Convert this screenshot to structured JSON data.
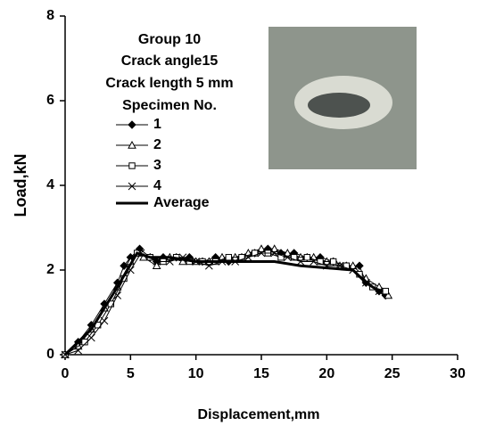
{
  "chart_data": {
    "type": "line",
    "legend_title": [
      "Group 10",
      "Crack angle15",
      "Crack length  5 mm",
      "Specimen No."
    ],
    "xlabel": "Displacement,mm",
    "ylabel": "Load,kN",
    "xlim": [
      0,
      30
    ],
    "xticks": [
      0,
      5,
      10,
      15,
      20,
      25,
      30
    ],
    "ylim": [
      0,
      8
    ],
    "yticks": [
      0,
      2,
      4,
      6,
      8
    ],
    "series": [
      {
        "name": "1",
        "color": "#000000",
        "marker": "diamond",
        "width": 1,
        "x": [
          0,
          1,
          2,
          3,
          4,
          4.5,
          5,
          5.7,
          6.5,
          7,
          7.5,
          8.5,
          9.5,
          10.5,
          11.5,
          12.5,
          13.5,
          14.5,
          15.5,
          16.5,
          17.5,
          18.5,
          19.5,
          20.5,
          21.5,
          22.5,
          23,
          24,
          24.5
        ],
        "values": [
          0,
          0.3,
          0.7,
          1.2,
          1.7,
          2.1,
          2.3,
          2.5,
          2.3,
          2.2,
          2.3,
          2.3,
          2.3,
          2.2,
          2.3,
          2.2,
          2.3,
          2.4,
          2.5,
          2.4,
          2.4,
          2.3,
          2.3,
          2.2,
          2.1,
          2.1,
          1.7,
          1.5,
          1.4
        ]
      },
      {
        "name": "2",
        "color": "#000000",
        "marker": "triangle",
        "width": 1,
        "x": [
          0,
          1,
          2,
          3,
          4,
          5,
          5.5,
          6,
          7,
          8,
          9,
          10,
          11,
          12,
          13,
          14,
          15,
          16,
          17,
          18,
          19,
          20,
          21,
          22,
          23,
          24,
          24.7
        ],
        "values": [
          0,
          0.2,
          0.6,
          1.1,
          1.6,
          2.2,
          2.4,
          2.3,
          2.1,
          2.3,
          2.2,
          2.2,
          2.2,
          2.3,
          2.3,
          2.4,
          2.5,
          2.5,
          2.4,
          2.3,
          2.3,
          2.2,
          2.1,
          2.1,
          1.8,
          1.6,
          1.4
        ]
      },
      {
        "name": "3",
        "color": "#000000",
        "marker": "square",
        "width": 1,
        "x": [
          0,
          1.5,
          2.5,
          3.5,
          4.5,
          5.5,
          6.5,
          7.5,
          8.5,
          9.5,
          10.5,
          11.5,
          12.5,
          13.5,
          14.5,
          15.5,
          16.5,
          17.5,
          18.5,
          19.5,
          20.5,
          21.5,
          22.5,
          23.5,
          24.5
        ],
        "values": [
          0,
          0.3,
          0.7,
          1.2,
          1.8,
          2.4,
          2.3,
          2.2,
          2.3,
          2.2,
          2.2,
          2.2,
          2.3,
          2.3,
          2.4,
          2.4,
          2.3,
          2.3,
          2.3,
          2.2,
          2.2,
          2.1,
          1.9,
          1.6,
          1.5
        ]
      },
      {
        "name": "4",
        "color": "#000000",
        "marker": "x",
        "width": 1,
        "x": [
          0,
          1,
          2,
          3,
          4,
          5,
          5.8,
          7,
          8,
          9,
          10,
          11,
          12,
          13,
          14,
          15,
          16,
          17,
          18,
          19,
          20,
          21,
          22,
          23,
          24
        ],
        "values": [
          0,
          0.1,
          0.4,
          0.8,
          1.4,
          2.0,
          2.4,
          2.2,
          2.2,
          2.3,
          2.2,
          2.1,
          2.2,
          2.2,
          2.3,
          2.4,
          2.4,
          2.3,
          2.2,
          2.2,
          2.1,
          2.1,
          2.0,
          1.7,
          1.5
        ]
      },
      {
        "name": "Average",
        "color": "#000000",
        "marker": "none",
        "width": 3,
        "x": [
          0,
          2,
          4,
          5.5,
          6.5,
          8,
          10,
          12,
          14,
          16,
          18,
          20,
          22,
          23,
          24
        ],
        "values": [
          0,
          0.6,
          1.6,
          2.4,
          2.3,
          2.3,
          2.2,
          2.2,
          2.2,
          2.2,
          2.1,
          2.05,
          2.0,
          1.7,
          1.5
        ]
      }
    ]
  }
}
